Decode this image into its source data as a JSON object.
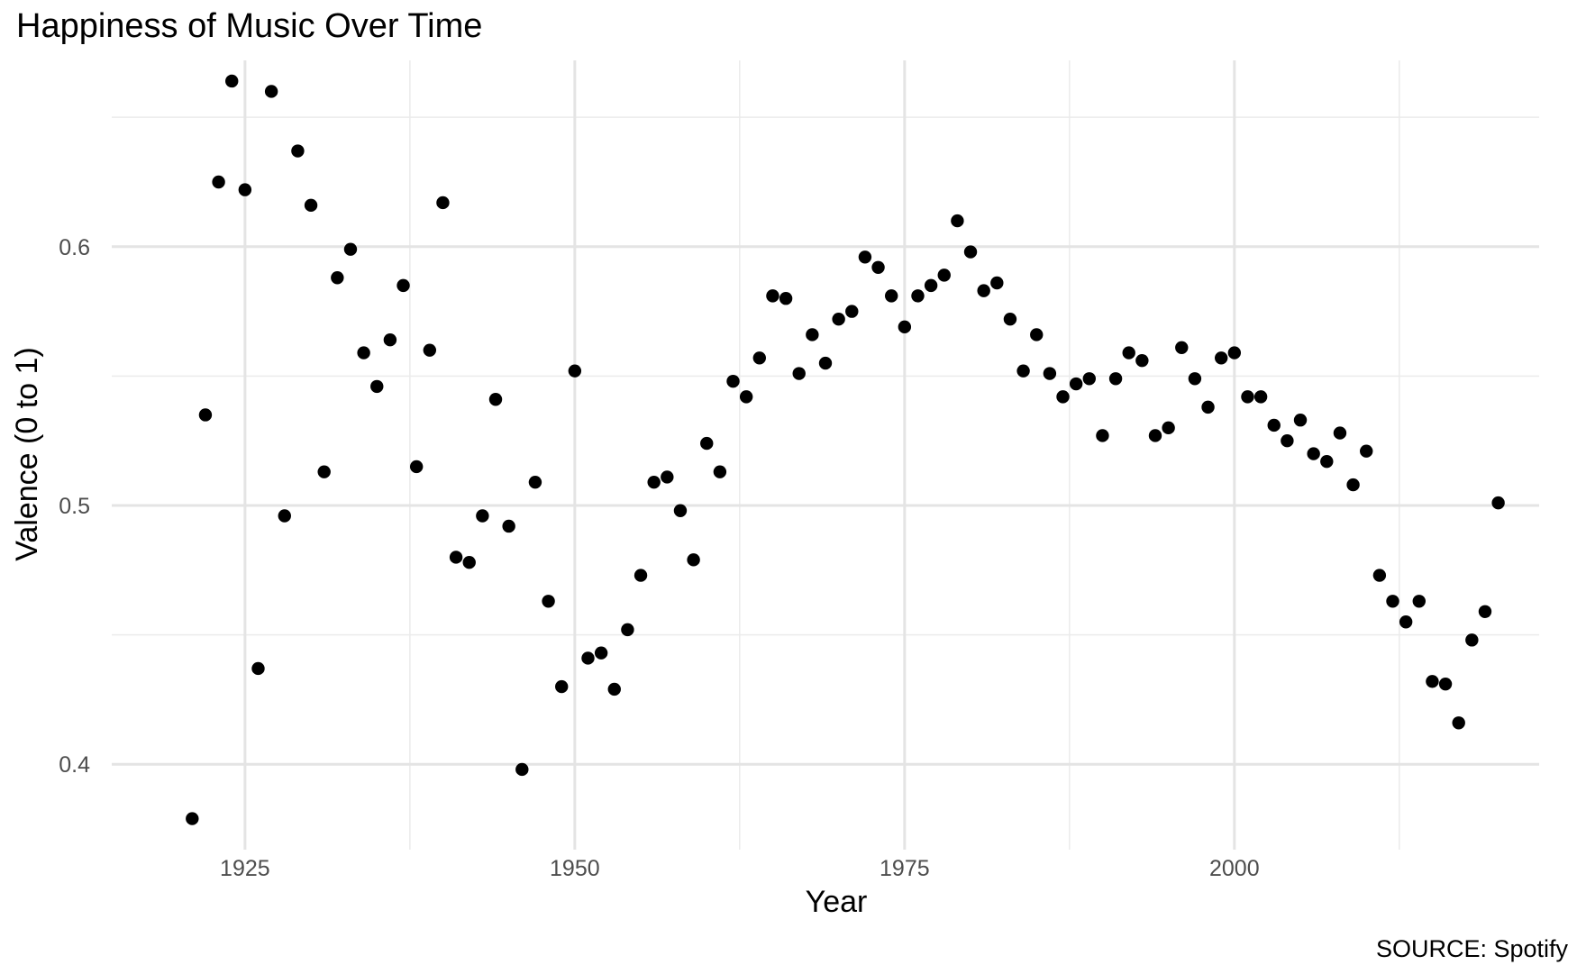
{
  "chart_data": {
    "type": "scatter",
    "title": "Happiness of Music Over Time",
    "xlabel": "Year",
    "ylabel": "Valence (0 to 1)",
    "caption": "SOURCE: Spotify",
    "xlim": [
      1914.9,
      2023.1
    ],
    "ylim": [
      0.367,
      0.672
    ],
    "x_ticks": [
      1925,
      1950,
      1975,
      2000
    ],
    "x_tick_labels": [
      "1925",
      "1950",
      "1975",
      "2000"
    ],
    "y_ticks": [
      0.4,
      0.5,
      0.6
    ],
    "y_tick_labels": [
      "0.4",
      "0.5",
      "0.6"
    ],
    "grid": true,
    "legend": "none",
    "series": [
      {
        "x": [
          1921,
          1922,
          1923,
          1924,
          1925,
          1926,
          1927,
          1928,
          1929,
          1930,
          1931,
          1932,
          1933,
          1934,
          1935,
          1936,
          1937,
          1938,
          1939,
          1940,
          1941,
          1942,
          1943,
          1944,
          1945,
          1946,
          1947,
          1948,
          1949,
          1950,
          1951,
          1952,
          1953,
          1954,
          1955,
          1956,
          1957,
          1958,
          1959,
          1960,
          1961,
          1962,
          1963,
          1964,
          1965,
          1966,
          1967,
          1968,
          1969,
          1970,
          1971,
          1972,
          1973,
          1974,
          1975,
          1976,
          1977,
          1978,
          1979,
          1980,
          1981,
          1982,
          1983,
          1984,
          1985,
          1986,
          1987,
          1988,
          1989,
          1990,
          1991,
          1992,
          1993,
          1994,
          1995,
          1996,
          1997,
          1998,
          1999,
          2000,
          2001,
          2002,
          2003,
          2004,
          2005,
          2006,
          2007,
          2008,
          2009,
          2010,
          2011,
          2012,
          2013,
          2014,
          2015,
          2016,
          2017,
          2018,
          2019,
          2020
        ],
        "y": [
          0.379,
          0.535,
          0.625,
          0.664,
          0.622,
          0.437,
          0.66,
          0.496,
          0.637,
          0.616,
          0.513,
          0.588,
          0.599,
          0.559,
          0.546,
          0.564,
          0.585,
          0.515,
          0.56,
          0.617,
          0.48,
          0.478,
          0.496,
          0.541,
          0.492,
          0.398,
          0.509,
          0.463,
          0.43,
          0.552,
          0.441,
          0.443,
          0.429,
          0.452,
          0.473,
          0.509,
          0.511,
          0.498,
          0.479,
          0.524,
          0.513,
          0.548,
          0.542,
          0.557,
          0.581,
          0.58,
          0.551,
          0.566,
          0.555,
          0.572,
          0.575,
          0.596,
          0.592,
          0.581,
          0.569,
          0.581,
          0.585,
          0.589,
          0.61,
          0.598,
          0.583,
          0.586,
          0.572,
          0.552,
          0.566,
          0.551,
          0.542,
          0.547,
          0.549,
          0.527,
          0.549,
          0.559,
          0.556,
          0.527,
          0.53,
          0.561,
          0.549,
          0.538,
          0.557,
          0.559,
          0.542,
          0.542,
          0.531,
          0.525,
          0.533,
          0.52,
          0.517,
          0.528,
          0.508,
          0.521,
          0.473,
          0.463,
          0.455,
          0.463,
          0.432,
          0.431,
          0.416,
          0.448,
          0.459,
          0.501
        ]
      }
    ]
  }
}
